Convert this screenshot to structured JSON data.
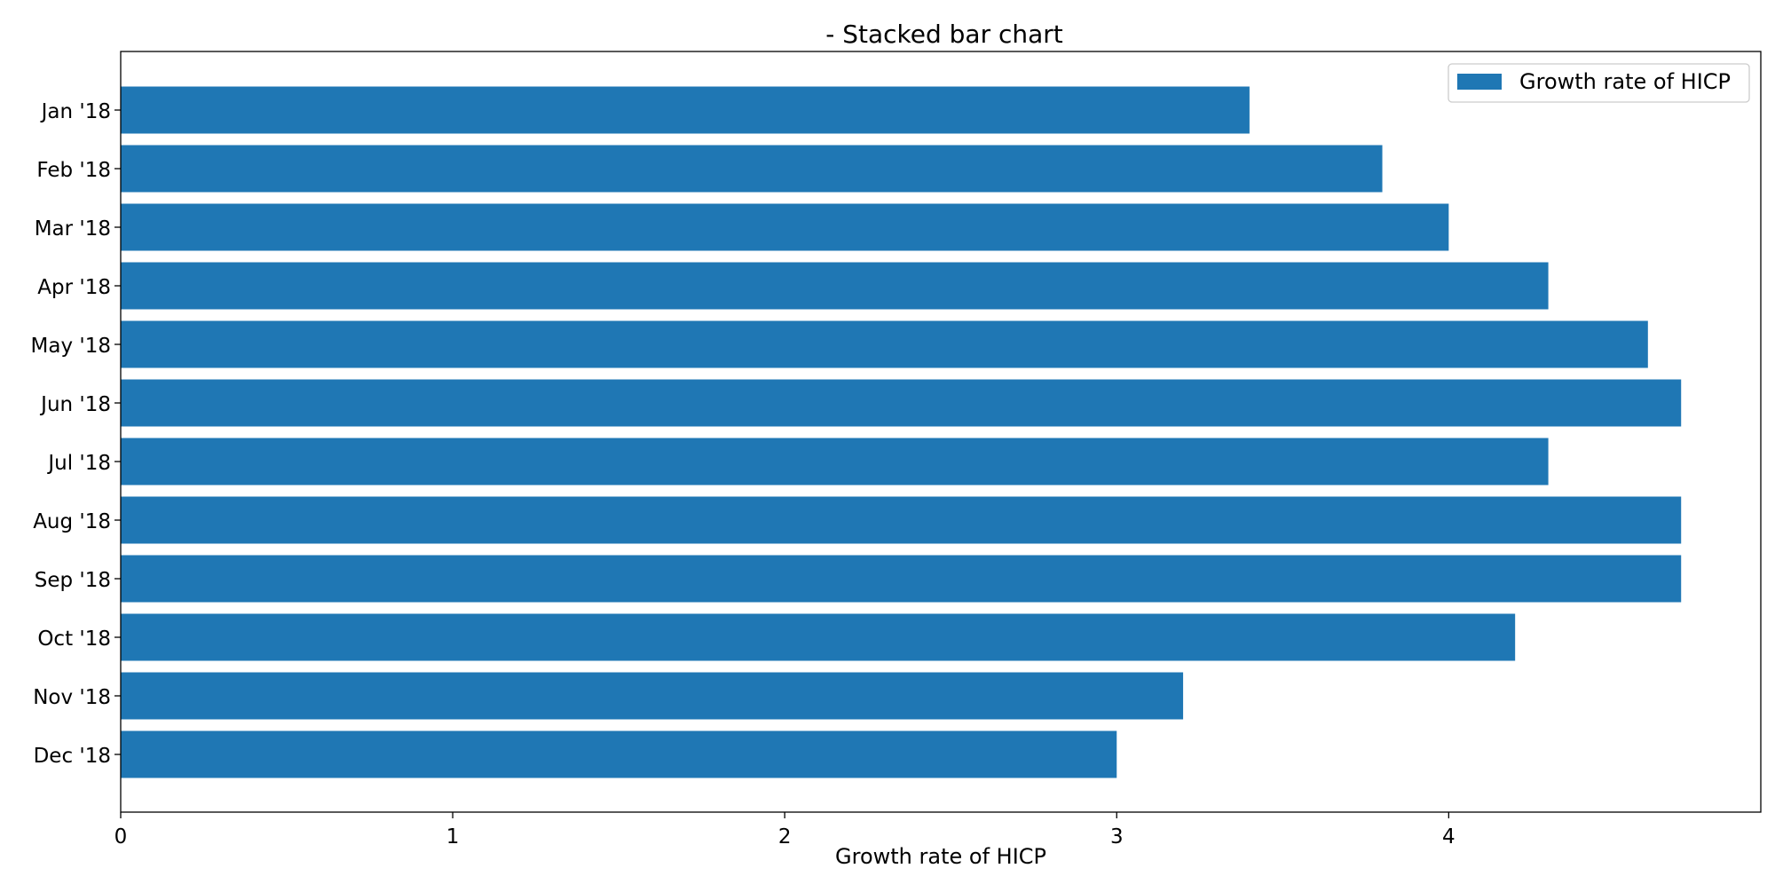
{
  "chart_data": {
    "type": "bar",
    "orientation": "horizontal",
    "title": "- Stacked bar chart",
    "xlabel": "Growth rate of HICP",
    "ylabel": "",
    "categories": [
      "Jan '18",
      "Feb '18",
      "Mar '18",
      "Apr '18",
      "May '18",
      "Jun '18",
      "Jul '18",
      "Aug '18",
      "Sep '18",
      "Oct '18",
      "Nov '18",
      "Dec '18"
    ],
    "series": [
      {
        "name": "Growth rate of HICP",
        "color": "#1f77b4",
        "values": [
          3.4,
          3.8,
          4.0,
          4.3,
          4.6,
          4.7,
          4.3,
          4.7,
          4.7,
          4.2,
          3.2,
          3.0
        ]
      }
    ],
    "xlim": [
      0,
      4.94
    ],
    "xticks": [
      0,
      1,
      2,
      3,
      4
    ],
    "xtick_labels": [
      "0",
      "1",
      "2",
      "3",
      "4"
    ],
    "grid": false,
    "legend": {
      "position": "top-right",
      "entries": [
        "Growth rate of HICP"
      ]
    }
  }
}
